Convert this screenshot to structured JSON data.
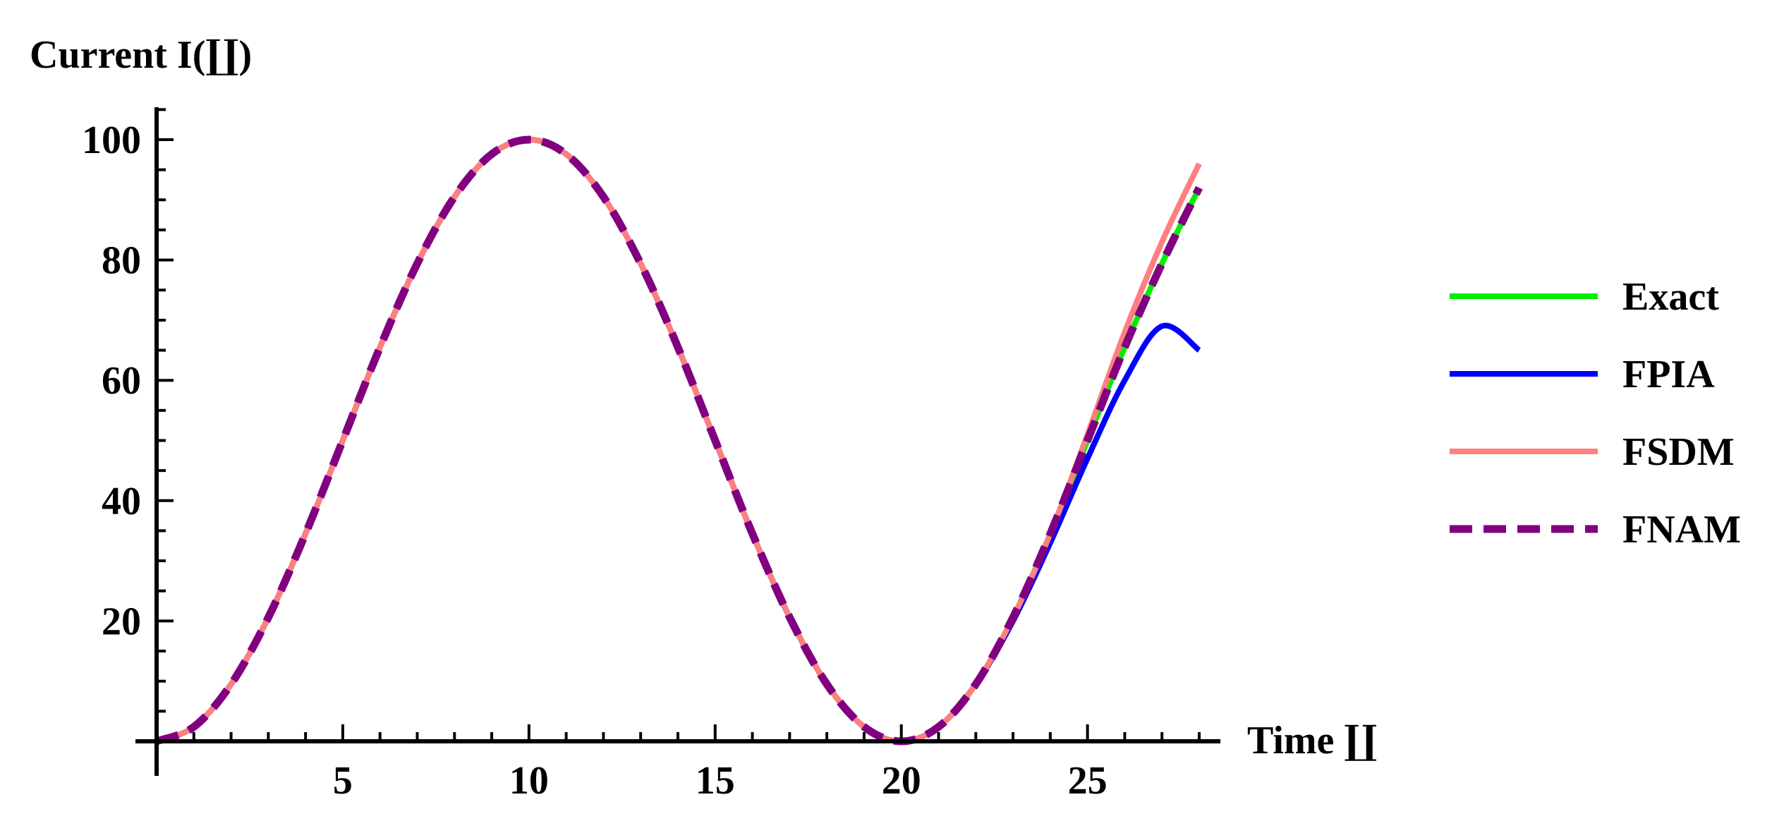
{
  "chart_data": {
    "type": "line",
    "ylabel": "Current I(∐)",
    "xlabel": "Time ∐",
    "xlim": [
      0,
      28
    ],
    "ylim": [
      0,
      100
    ],
    "x_ticks": [
      5,
      10,
      15,
      20,
      25
    ],
    "x_tick_labels": [
      "5",
      "10",
      "15",
      "20",
      "25"
    ],
    "y_ticks": [
      20,
      40,
      60,
      80,
      100
    ],
    "y_tick_labels": [
      "20",
      "40",
      "60",
      "80",
      "100"
    ],
    "grid": false,
    "legend_position": "right",
    "x": [
      0,
      1,
      2,
      3,
      4,
      5,
      6,
      7,
      8,
      9,
      10,
      11,
      12,
      13,
      14,
      15,
      16,
      17,
      18,
      19,
      20,
      21,
      22,
      23,
      24,
      25,
      26,
      27,
      28
    ],
    "series": [
      {
        "name": "Exact",
        "color": "#00ee00",
        "style": "solid",
        "values": [
          0,
          2.4,
          9.5,
          20.6,
          34.5,
          50,
          65.5,
          79.4,
          90.5,
          97.6,
          100,
          97.6,
          90.5,
          79.4,
          65.5,
          50,
          34.5,
          20.6,
          9.5,
          2.4,
          0,
          2.4,
          9.5,
          20.6,
          34.5,
          50,
          65.5,
          79.4,
          92
        ]
      },
      {
        "name": "FPIA",
        "color": "#0000ff",
        "style": "solid",
        "values": [
          0,
          2.4,
          9.5,
          20.6,
          34.5,
          50,
          65.5,
          79.4,
          90.5,
          97.6,
          100,
          97.6,
          90.5,
          79.4,
          65.5,
          50,
          34.5,
          20.6,
          9.5,
          2.4,
          0,
          2.4,
          9.5,
          20,
          33,
          47,
          60,
          69,
          65
        ]
      },
      {
        "name": "FSDM",
        "color": "#ff7f7f",
        "style": "solid",
        "values": [
          0,
          2.4,
          9.5,
          20.6,
          34.5,
          50,
          65.5,
          79.4,
          90.5,
          97.6,
          100,
          97.6,
          90.5,
          79.4,
          65.5,
          50,
          34.5,
          20.6,
          9.5,
          2.4,
          0,
          2.4,
          9.5,
          20.6,
          34.5,
          51,
          68,
          83,
          96
        ]
      },
      {
        "name": "FNAM",
        "color": "#800080",
        "style": "dashed",
        "values": [
          0,
          2.4,
          9.5,
          20.6,
          34.5,
          50,
          65.5,
          79.4,
          90.5,
          97.6,
          100,
          97.6,
          90.5,
          79.4,
          65.5,
          50,
          34.5,
          20.6,
          9.5,
          2.4,
          0,
          2.4,
          9.5,
          20.6,
          34.5,
          50,
          65.5,
          79.4,
          92
        ]
      }
    ]
  }
}
